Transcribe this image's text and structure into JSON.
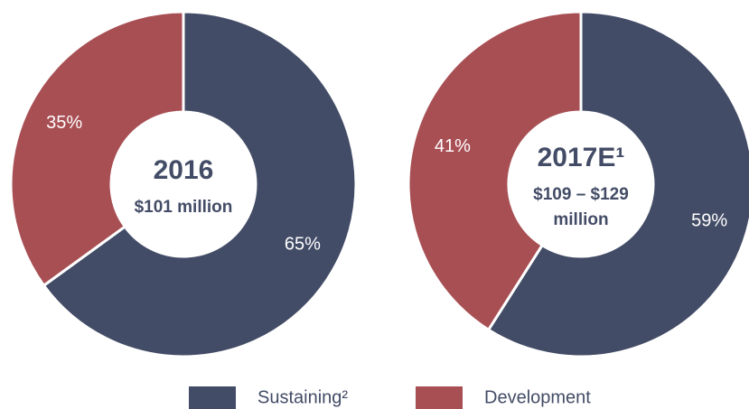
{
  "chart_data": [
    {
      "type": "pie",
      "title": "2016",
      "subtitle": [
        "$101 million"
      ],
      "categories": [
        "Sustaining²",
        "Development"
      ],
      "values": [
        65,
        35
      ],
      "value_labels": [
        "65%",
        "35%"
      ],
      "colors": [
        "#434c66",
        "#a84f54"
      ]
    },
    {
      "type": "pie",
      "title": "2017E¹",
      "subtitle": [
        "$109 – $129",
        "million"
      ],
      "categories": [
        "Sustaining²",
        "Development"
      ],
      "values": [
        59,
        41
      ],
      "value_labels": [
        "59%",
        "41%"
      ],
      "colors": [
        "#434c66",
        "#a84f54"
      ]
    }
  ]
}
